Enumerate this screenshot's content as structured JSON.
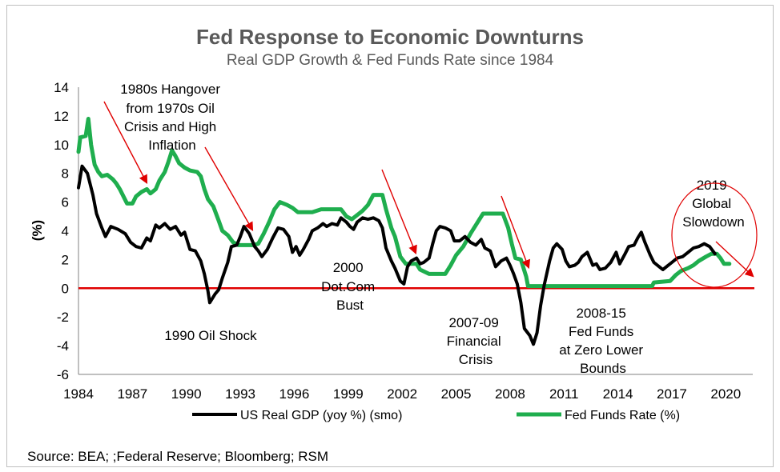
{
  "chart_data": {
    "type": "line",
    "title": "Fed Response to Economic Downturns",
    "subtitle": "Real GDP Growth & Fed Funds Rate since 1984",
    "ylabel": "(%)",
    "xlabel": "",
    "ylim": [
      -6,
      14
    ],
    "xlim": [
      1984,
      2021.5
    ],
    "yticks": [
      "14",
      "12",
      "10",
      "8",
      "6",
      "4",
      "2",
      "0",
      "-2",
      "-4",
      "-6"
    ],
    "xticks": [
      "1984",
      "1987",
      "1990",
      "1993",
      "1996",
      "1999",
      "2002",
      "2005",
      "2008",
      "2011",
      "2014",
      "2017",
      "2020"
    ],
    "grid": false,
    "legend_position": "bottom",
    "zero_line_color": "#e00000",
    "series": [
      {
        "name": "US Real GDP (yoy %) (smo)",
        "color": "#000000",
        "points": [
          [
            1984.0,
            7.0
          ],
          [
            1984.2,
            8.5
          ],
          [
            1984.5,
            8.0
          ],
          [
            1984.8,
            6.5
          ],
          [
            1985.0,
            5.2
          ],
          [
            1985.3,
            4.2
          ],
          [
            1985.5,
            3.6
          ],
          [
            1985.8,
            4.3
          ],
          [
            1986.2,
            4.1
          ],
          [
            1986.6,
            3.8
          ],
          [
            1986.9,
            3.2
          ],
          [
            1987.2,
            2.9
          ],
          [
            1987.5,
            2.8
          ],
          [
            1987.8,
            3.5
          ],
          [
            1988.0,
            3.3
          ],
          [
            1988.3,
            4.4
          ],
          [
            1988.5,
            4.2
          ],
          [
            1988.8,
            4.5
          ],
          [
            1989.1,
            4.1
          ],
          [
            1989.4,
            4.3
          ],
          [
            1989.7,
            3.7
          ],
          [
            1989.9,
            3.9
          ],
          [
            1990.2,
            2.7
          ],
          [
            1990.5,
            2.6
          ],
          [
            1990.8,
            1.9
          ],
          [
            1991.0,
            1.0
          ],
          [
            1991.2,
            -0.2
          ],
          [
            1991.3,
            -1.0
          ],
          [
            1991.6,
            -0.4
          ],
          [
            1991.8,
            -0.1
          ],
          [
            1992.0,
            0.7
          ],
          [
            1992.3,
            1.8
          ],
          [
            1992.5,
            2.9
          ],
          [
            1992.8,
            3.0
          ],
          [
            1993.0,
            3.6
          ],
          [
            1993.2,
            4.3
          ],
          [
            1993.5,
            3.8
          ],
          [
            1993.8,
            2.9
          ],
          [
            1994.0,
            2.6
          ],
          [
            1994.2,
            2.2
          ],
          [
            1994.5,
            2.7
          ],
          [
            1994.8,
            3.5
          ],
          [
            1995.1,
            4.2
          ],
          [
            1995.4,
            4.1
          ],
          [
            1995.7,
            3.6
          ],
          [
            1995.9,
            2.5
          ],
          [
            1996.1,
            2.9
          ],
          [
            1996.3,
            2.3
          ],
          [
            1996.5,
            2.7
          ],
          [
            1996.8,
            3.4
          ],
          [
            1997.0,
            4.0
          ],
          [
            1997.3,
            4.2
          ],
          [
            1997.6,
            4.5
          ],
          [
            1997.8,
            4.3
          ],
          [
            1998.1,
            4.5
          ],
          [
            1998.4,
            4.4
          ],
          [
            1998.6,
            4.9
          ],
          [
            1998.9,
            4.6
          ],
          [
            1999.1,
            4.3
          ],
          [
            1999.3,
            4.1
          ],
          [
            1999.5,
            4.6
          ],
          [
            1999.8,
            4.9
          ],
          [
            2000.1,
            4.8
          ],
          [
            2000.4,
            4.9
          ],
          [
            2000.7,
            4.7
          ],
          [
            2000.9,
            4.2
          ],
          [
            2001.1,
            2.8
          ],
          [
            2001.4,
            1.9
          ],
          [
            2001.6,
            1.4
          ],
          [
            2001.9,
            0.5
          ],
          [
            2002.1,
            0.3
          ],
          [
            2002.3,
            1.5
          ],
          [
            2002.5,
            1.9
          ],
          [
            2002.8,
            2.1
          ],
          [
            2003.0,
            1.7
          ],
          [
            2003.2,
            1.8
          ],
          [
            2003.5,
            2.1
          ],
          [
            2003.7,
            3.1
          ],
          [
            2003.9,
            4.0
          ],
          [
            2004.1,
            4.3
          ],
          [
            2004.4,
            4.2
          ],
          [
            2004.7,
            4.0
          ],
          [
            2004.9,
            3.3
          ],
          [
            2005.2,
            3.3
          ],
          [
            2005.5,
            3.6
          ],
          [
            2005.8,
            3.2
          ],
          [
            2006.1,
            3.0
          ],
          [
            2006.4,
            3.4
          ],
          [
            2006.6,
            2.8
          ],
          [
            2006.9,
            2.6
          ],
          [
            2007.2,
            1.5
          ],
          [
            2007.5,
            1.9
          ],
          [
            2007.8,
            2.1
          ],
          [
            2008.0,
            1.6
          ],
          [
            2008.2,
            1.0
          ],
          [
            2008.4,
            0.3
          ],
          [
            2008.6,
            -1.0
          ],
          [
            2008.8,
            -2.8
          ],
          [
            2009.1,
            -3.3
          ],
          [
            2009.3,
            -3.9
          ],
          [
            2009.5,
            -3.1
          ],
          [
            2009.7,
            -1.2
          ],
          [
            2009.9,
            0.2
          ],
          [
            2010.2,
            1.9
          ],
          [
            2010.4,
            2.8
          ],
          [
            2010.6,
            3.1
          ],
          [
            2010.9,
            2.7
          ],
          [
            2011.1,
            1.9
          ],
          [
            2011.3,
            1.5
          ],
          [
            2011.6,
            1.6
          ],
          [
            2011.8,
            1.8
          ],
          [
            2012.0,
            2.2
          ],
          [
            2012.3,
            2.5
          ],
          [
            2012.6,
            1.6
          ],
          [
            2012.8,
            1.7
          ],
          [
            2013.0,
            1.3
          ],
          [
            2013.3,
            1.4
          ],
          [
            2013.6,
            1.8
          ],
          [
            2013.9,
            2.5
          ],
          [
            2014.1,
            1.7
          ],
          [
            2014.4,
            2.4
          ],
          [
            2014.6,
            2.9
          ],
          [
            2014.9,
            3.0
          ],
          [
            2015.1,
            3.5
          ],
          [
            2015.3,
            3.9
          ],
          [
            2015.5,
            3.2
          ],
          [
            2015.8,
            2.3
          ],
          [
            2016.0,
            1.8
          ],
          [
            2016.3,
            1.5
          ],
          [
            2016.5,
            1.3
          ],
          [
            2016.8,
            1.6
          ],
          [
            2017.0,
            1.8
          ],
          [
            2017.3,
            2.1
          ],
          [
            2017.6,
            2.2
          ],
          [
            2017.9,
            2.5
          ],
          [
            2018.2,
            2.8
          ],
          [
            2018.5,
            2.9
          ],
          [
            2018.8,
            3.1
          ],
          [
            2019.1,
            2.9
          ],
          [
            2019.4,
            2.4
          ]
        ]
      },
      {
        "name": "Fed Funds Rate (%)",
        "color": "#1fae4e",
        "points": [
          [
            1984.0,
            9.5
          ],
          [
            1984.1,
            10.5
          ],
          [
            1984.4,
            10.6
          ],
          [
            1984.55,
            11.8
          ],
          [
            1984.7,
            10.0
          ],
          [
            1984.9,
            8.6
          ],
          [
            1985.1,
            8.1
          ],
          [
            1985.3,
            7.8
          ],
          [
            1985.6,
            7.9
          ],
          [
            1985.9,
            7.6
          ],
          [
            1986.1,
            7.3
          ],
          [
            1986.3,
            6.9
          ],
          [
            1986.5,
            6.4
          ],
          [
            1986.7,
            5.9
          ],
          [
            1987.0,
            5.9
          ],
          [
            1987.2,
            6.4
          ],
          [
            1987.5,
            6.7
          ],
          [
            1987.8,
            6.9
          ],
          [
            1988.0,
            6.6
          ],
          [
            1988.3,
            6.9
          ],
          [
            1988.5,
            7.5
          ],
          [
            1988.8,
            8.1
          ],
          [
            1989.0,
            8.8
          ],
          [
            1989.2,
            9.6
          ],
          [
            1989.4,
            9.2
          ],
          [
            1989.6,
            8.7
          ],
          [
            1989.9,
            8.4
          ],
          [
            1990.2,
            8.2
          ],
          [
            1990.6,
            8.1
          ],
          [
            1990.8,
            7.8
          ],
          [
            1991.0,
            6.9
          ],
          [
            1991.2,
            6.2
          ],
          [
            1991.5,
            5.7
          ],
          [
            1991.8,
            4.7
          ],
          [
            1992.0,
            4.0
          ],
          [
            1992.3,
            3.7
          ],
          [
            1992.6,
            3.2
          ],
          [
            1992.9,
            3.0
          ],
          [
            1993.3,
            3.0
          ],
          [
            1993.7,
            3.0
          ],
          [
            1994.0,
            3.1
          ],
          [
            1994.3,
            3.8
          ],
          [
            1994.6,
            4.6
          ],
          [
            1994.9,
            5.5
          ],
          [
            1995.2,
            6.0
          ],
          [
            1995.6,
            5.8
          ],
          [
            1995.9,
            5.6
          ],
          [
            1996.2,
            5.3
          ],
          [
            1997.0,
            5.3
          ],
          [
            1997.5,
            5.5
          ],
          [
            1998.0,
            5.5
          ],
          [
            1998.6,
            5.5
          ],
          [
            1998.9,
            5.0
          ],
          [
            1999.2,
            4.8
          ],
          [
            1999.5,
            5.1
          ],
          [
            1999.8,
            5.4
          ],
          [
            2000.1,
            5.8
          ],
          [
            2000.4,
            6.5
          ],
          [
            2000.9,
            6.5
          ],
          [
            2001.1,
            5.5
          ],
          [
            2001.4,
            4.2
          ],
          [
            2001.6,
            3.6
          ],
          [
            2001.9,
            2.2
          ],
          [
            2002.2,
            1.7
          ],
          [
            2002.8,
            1.7
          ],
          [
            2003.0,
            1.3
          ],
          [
            2003.5,
            1.0
          ],
          [
            2004.4,
            1.0
          ],
          [
            2004.7,
            1.6
          ],
          [
            2005.0,
            2.3
          ],
          [
            2005.4,
            2.9
          ],
          [
            2005.8,
            3.8
          ],
          [
            2006.2,
            4.6
          ],
          [
            2006.5,
            5.2
          ],
          [
            2007.6,
            5.2
          ],
          [
            2007.9,
            4.2
          ],
          [
            2008.1,
            3.1
          ],
          [
            2008.3,
            2.1
          ],
          [
            2008.6,
            2.0
          ],
          [
            2008.9,
            0.8
          ],
          [
            2009.0,
            0.15
          ],
          [
            2015.9,
            0.15
          ],
          [
            2016.0,
            0.4
          ],
          [
            2016.9,
            0.5
          ],
          [
            2017.2,
            0.9
          ],
          [
            2017.5,
            1.2
          ],
          [
            2017.9,
            1.4
          ],
          [
            2018.2,
            1.6
          ],
          [
            2018.5,
            1.9
          ],
          [
            2018.9,
            2.2
          ],
          [
            2019.2,
            2.4
          ],
          [
            2019.5,
            2.4
          ],
          [
            2019.7,
            2.1
          ],
          [
            2019.9,
            1.7
          ],
          [
            2020.2,
            1.7
          ]
        ]
      }
    ],
    "annotations": [
      {
        "lines": [
          "1980s Hangover",
          "from 1970s Oil",
          "Crisis and High",
          "Inflation"
        ]
      },
      {
        "lines": [
          "1990 Oil Shock"
        ]
      },
      {
        "lines": [
          "2000",
          "Dot.Com",
          "Bust"
        ]
      },
      {
        "lines": [
          "2007-09",
          "Financial",
          "Crisis"
        ]
      },
      {
        "lines": [
          "2008-15",
          "Fed Funds",
          "at Zero Lower",
          "Bounds"
        ]
      },
      {
        "lines": [
          "2019",
          "Global",
          "Slowdown"
        ]
      }
    ],
    "source": "Source: BEA; ;Federal Reserve;  Bloomberg; RSM"
  }
}
